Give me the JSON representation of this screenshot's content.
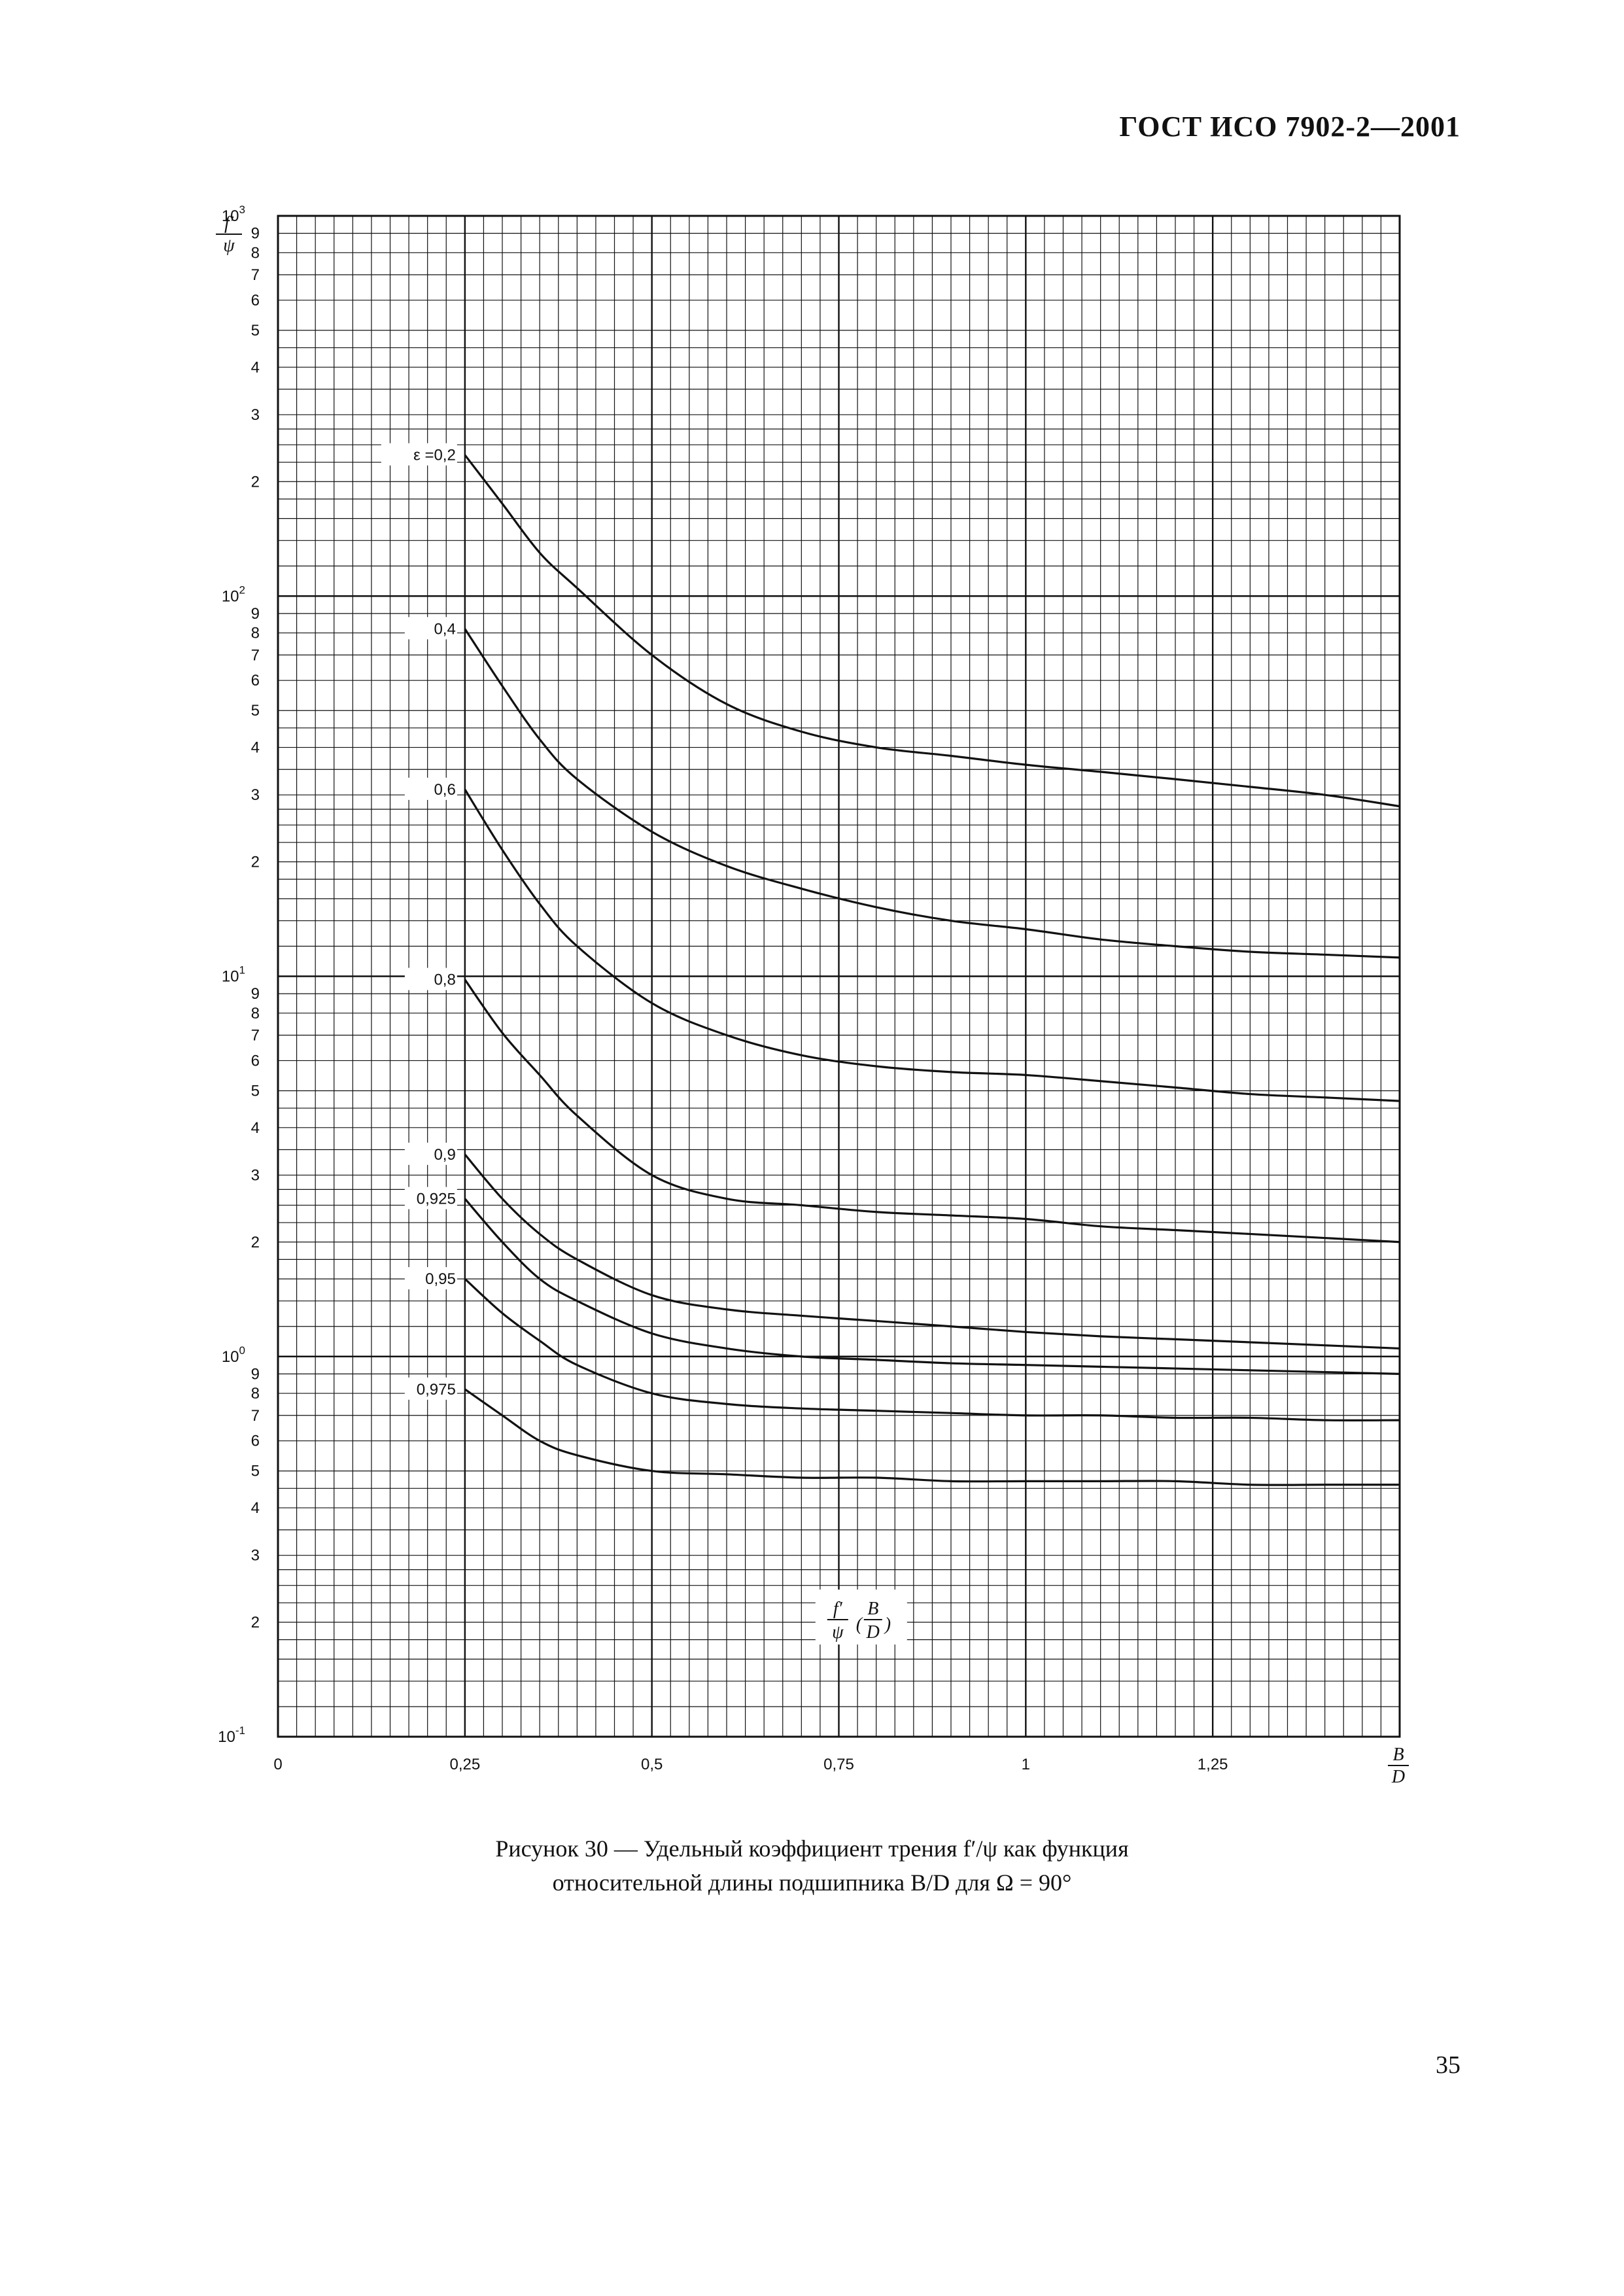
{
  "header": {
    "text": "ГОСТ ИСО 7902-2—2001"
  },
  "caption": {
    "line1": "Рисунок 30 — Удельный коэффициент трения f′/ψ как функция",
    "line2": "относительной длины подшипника B/D для Ω = 90°"
  },
  "page_number": "35",
  "chart_data": {
    "type": "line",
    "title": "",
    "x_scale": "linear",
    "y_scale": "log",
    "xlim": [
      0,
      1.5
    ],
    "ylim": [
      0.1,
      1000
    ],
    "grid": true,
    "xlabel": {
      "numerator": "B",
      "denominator": "D"
    },
    "ylabel": {
      "numerator": "f′",
      "denominator": "ψ"
    },
    "annotation": {
      "prefix": "f′",
      "prefix_den": "ψ",
      "arg_num": "B",
      "arg_den": "D"
    },
    "x_ticks": [
      {
        "value": 0,
        "label": "0"
      },
      {
        "value": 0.25,
        "label": "0,25"
      },
      {
        "value": 0.5,
        "label": "0,5"
      },
      {
        "value": 0.75,
        "label": "0,75"
      },
      {
        "value": 1,
        "label": "1"
      },
      {
        "value": 1.25,
        "label": "1,25"
      }
    ],
    "y_decades": [
      {
        "value": 1000,
        "base": "10",
        "exp": "3"
      },
      {
        "value": 100,
        "base": "10",
        "exp": "2"
      },
      {
        "value": 10,
        "base": "10",
        "exp": "1"
      },
      {
        "value": 1,
        "base": "10",
        "exp": "0"
      },
      {
        "value": 0.1,
        "base": "10",
        "exp": "-1"
      }
    ],
    "y_minor_labels": [
      "2",
      "3",
      "4",
      "5",
      "6",
      "7",
      "8",
      "9"
    ],
    "series_label_prefix": "ε =",
    "x": [
      0.25,
      0.3,
      0.35,
      0.4,
      0.5,
      0.6,
      0.7,
      0.8,
      0.9,
      1.0,
      1.1,
      1.2,
      1.3,
      1.4,
      1.5
    ],
    "series": [
      {
        "name": "0,2",
        "values": [
          235,
          175,
          130,
          105,
          70,
          52,
          44,
          40,
          38,
          36,
          34.5,
          33,
          31.5,
          30,
          28
        ]
      },
      {
        "name": "0,4",
        "values": [
          82,
          58,
          42,
          33,
          24,
          19.5,
          17,
          15.2,
          14,
          13.3,
          12.5,
          12,
          11.6,
          11.4,
          11.2
        ]
      },
      {
        "name": "0,6",
        "values": [
          31,
          21.5,
          15.5,
          12,
          8.5,
          7,
          6.2,
          5.8,
          5.6,
          5.5,
          5.3,
          5.1,
          4.9,
          4.8,
          4.7
        ]
      },
      {
        "name": "0,8",
        "values": [
          9.8,
          7.1,
          5.5,
          4.3,
          3,
          2.6,
          2.5,
          2.4,
          2.35,
          2.3,
          2.2,
          2.15,
          2.1,
          2.05,
          2.0
        ]
      },
      {
        "name": "0,9",
        "values": [
          3.4,
          2.6,
          2.1,
          1.8,
          1.45,
          1.33,
          1.28,
          1.24,
          1.2,
          1.16,
          1.13,
          1.11,
          1.09,
          1.07,
          1.05
        ]
      },
      {
        "name": "0,925",
        "values": [
          2.6,
          2.0,
          1.6,
          1.4,
          1.15,
          1.05,
          1.0,
          0.98,
          0.96,
          0.95,
          0.94,
          0.93,
          0.92,
          0.91,
          0.9
        ]
      },
      {
        "name": "0,95",
        "values": [
          1.6,
          1.3,
          1.1,
          0.95,
          0.8,
          0.75,
          0.73,
          0.72,
          0.71,
          0.7,
          0.7,
          0.69,
          0.69,
          0.68,
          0.68
        ]
      },
      {
        "name": "0,975",
        "values": [
          0.82,
          0.7,
          0.6,
          0.55,
          0.5,
          0.49,
          0.48,
          0.48,
          0.47,
          0.47,
          0.47,
          0.47,
          0.46,
          0.46,
          0.46
        ]
      }
    ]
  }
}
